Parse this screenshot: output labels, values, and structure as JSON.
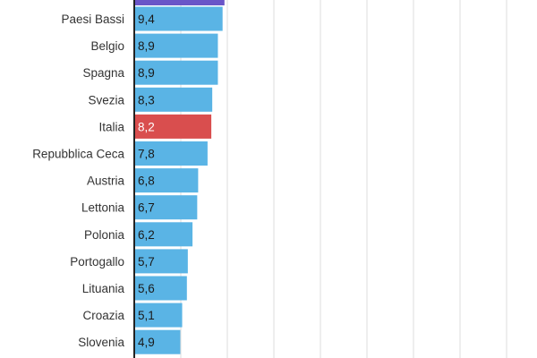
{
  "chart_data": {
    "type": "bar",
    "orientation": "horizontal",
    "title": "",
    "xlabel": "",
    "ylabel": "",
    "grid": true,
    "xlim": [
      0,
      9.4
    ],
    "colors": {
      "default": "#5ab4e5",
      "highlight": "#d94e4e",
      "partial_top": "#6a55c8",
      "axis": "#222222",
      "grid": "#dddddd"
    },
    "partially_visible_top_bar": {
      "label": "",
      "value": 9.6,
      "color": "#6a55c8"
    },
    "bars": [
      {
        "label": "Paesi Bassi",
        "value": 9.4,
        "value_label": "9,4",
        "highlight": false
      },
      {
        "label": "Belgio",
        "value": 8.9,
        "value_label": "8,9",
        "highlight": false
      },
      {
        "label": "Spagna",
        "value": 8.9,
        "value_label": "8,9",
        "highlight": false
      },
      {
        "label": "Svezia",
        "value": 8.3,
        "value_label": "8,3",
        "highlight": false
      },
      {
        "label": "Italia",
        "value": 8.2,
        "value_label": "8,2",
        "highlight": true
      },
      {
        "label": "Repubblica Ceca",
        "value": 7.8,
        "value_label": "7,8",
        "highlight": false
      },
      {
        "label": "Austria",
        "value": 6.8,
        "value_label": "6,8",
        "highlight": false
      },
      {
        "label": "Lettonia",
        "value": 6.7,
        "value_label": "6,7",
        "highlight": false
      },
      {
        "label": "Polonia",
        "value": 6.2,
        "value_label": "6,2",
        "highlight": false
      },
      {
        "label": "Portogallo",
        "value": 5.7,
        "value_label": "5,7",
        "highlight": false
      },
      {
        "label": "Lituania",
        "value": 5.6,
        "value_label": "5,6",
        "highlight": false
      },
      {
        "label": "Croazia",
        "value": 5.1,
        "value_label": "5,1",
        "highlight": false
      },
      {
        "label": "Slovenia",
        "value": 4.9,
        "value_label": "4,9",
        "highlight": false
      }
    ]
  }
}
